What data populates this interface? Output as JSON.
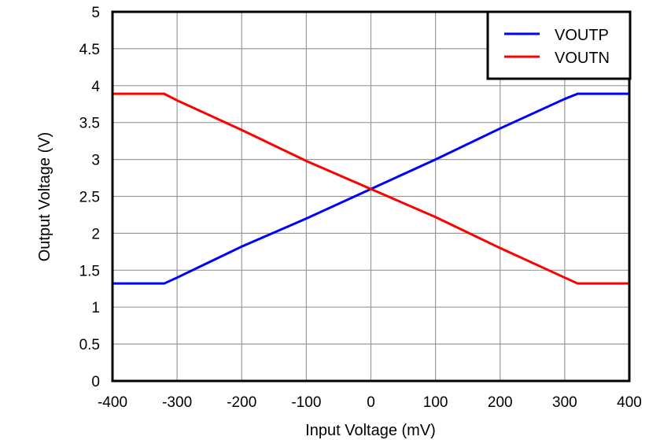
{
  "chart_data": {
    "type": "line",
    "title": "",
    "xlabel": "Input Voltage (mV)",
    "ylabel": "Output Voltage (V)",
    "xlim": [
      -400,
      400
    ],
    "ylim": [
      0,
      5
    ],
    "xticks": [
      "-400",
      "-300",
      "-200",
      "-100",
      "0",
      "100",
      "200",
      "300",
      "400"
    ],
    "yticks": [
      "0",
      "0.5",
      "1",
      "1.5",
      "2",
      "2.5",
      "3",
      "3.5",
      "4",
      "4.5",
      "5"
    ],
    "grid": true,
    "legend_position": "upper right",
    "series": [
      {
        "name": "VOUTP",
        "color": "#0000ff",
        "x": [
          -400,
          -320,
          -300,
          -200,
          -100,
          0,
          100,
          200,
          300,
          320,
          400
        ],
        "y": [
          1.32,
          1.32,
          1.4,
          1.82,
          2.2,
          2.6,
          3.0,
          3.42,
          3.82,
          3.89,
          3.89
        ]
      },
      {
        "name": "VOUTN",
        "color": "#ff0000",
        "x": [
          -400,
          -320,
          -300,
          -200,
          -100,
          0,
          100,
          200,
          300,
          320,
          400
        ],
        "y": [
          3.89,
          3.89,
          3.8,
          3.4,
          2.98,
          2.6,
          2.22,
          1.8,
          1.4,
          1.32,
          1.32
        ]
      }
    ]
  }
}
